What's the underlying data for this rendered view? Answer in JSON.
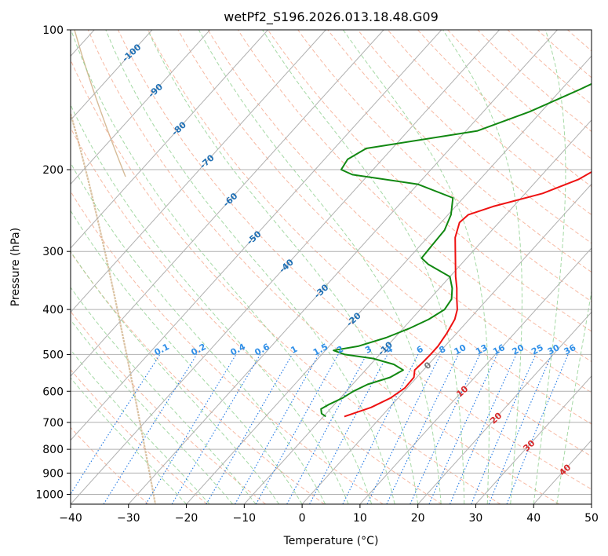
{
  "chart_data": {
    "type": "line",
    "subtype": "skew-t log-p diagram",
    "title": "wetPf2_S196.2026.013.18.48.G09",
    "xlabel": "Temperature (°C)",
    "ylabel": "Pressure (hPa)",
    "xlim": [
      -40,
      50
    ],
    "ylim": [
      1050,
      100
    ],
    "y_scale": "log",
    "grid": true,
    "x_ticks": [
      "−40",
      "−30",
      "−20",
      "−10",
      "0",
      "10",
      "20",
      "30",
      "40",
      "50"
    ],
    "y_ticks": [
      "100",
      "200",
      "300",
      "400",
      "500",
      "600",
      "700",
      "800",
      "900",
      "1000"
    ],
    "isotherm_labels": [
      "-100",
      "-90",
      "-80",
      "-70",
      "-60",
      "-50",
      "-40",
      "-30",
      "-20",
      "-10",
      "0",
      "10",
      "20",
      "30",
      "40"
    ],
    "mixing_ratio_labels": [
      "0.1",
      "0.2",
      "0.4",
      "0.6",
      "1",
      "1.5",
      "2",
      "3",
      "4",
      "6",
      "8",
      "10",
      "13",
      "16",
      "20",
      "25",
      "30",
      "36"
    ],
    "series": [
      {
        "color": "#ee1111",
        "points": [
          {
            "p": 680,
            "t": -6.4
          },
          {
            "p": 650,
            "t": -3.2
          },
          {
            "p": 620,
            "t": -1.3
          },
          {
            "p": 590,
            "t": -0.4
          },
          {
            "p": 560,
            "t": -0.5
          },
          {
            "p": 540,
            "t": -1.5
          },
          {
            "p": 520,
            "t": -1.3
          },
          {
            "p": 500,
            "t": -1.2
          },
          {
            "p": 480,
            "t": -1.2
          },
          {
            "p": 450,
            "t": -1.7
          },
          {
            "p": 420,
            "t": -2.5
          },
          {
            "p": 400,
            "t": -3.6
          },
          {
            "p": 380,
            "t": -5.3
          },
          {
            "p": 360,
            "t": -7.0
          },
          {
            "p": 340,
            "t": -9.0
          },
          {
            "p": 300,
            "t": -13.0
          },
          {
            "p": 280,
            "t": -15.2
          },
          {
            "p": 260,
            "t": -16.8
          },
          {
            "p": 250,
            "t": -16.5
          },
          {
            "p": 240,
            "t": -13.5
          },
          {
            "p": 225,
            "t": -7.0
          },
          {
            "p": 210,
            "t": -3.0
          },
          {
            "p": 190,
            "t": 0
          },
          {
            "p": 170,
            "t": 1.0
          },
          {
            "p": 150,
            "t": 1.5
          },
          {
            "p": 130,
            "t": 2.0
          },
          {
            "p": 115,
            "t": 2.2
          },
          {
            "p": 100,
            "t": 2.0
          }
        ]
      },
      {
        "color": "#118811",
        "points": [
          {
            "p": 680,
            "t": -9.6
          },
          {
            "p": 670,
            "t": -10.8
          },
          {
            "p": 655,
            "t": -11.6
          },
          {
            "p": 640,
            "t": -10.9
          },
          {
            "p": 620,
            "t": -9.6
          },
          {
            "p": 600,
            "t": -8.8
          },
          {
            "p": 580,
            "t": -7.4
          },
          {
            "p": 560,
            "t": -4.6
          },
          {
            "p": 540,
            "t": -3.5
          },
          {
            "p": 525,
            "t": -6.0
          },
          {
            "p": 510,
            "t": -10.5
          },
          {
            "p": 500,
            "t": -16.0
          },
          {
            "p": 490,
            "t": -18.6
          },
          {
            "p": 480,
            "t": -15.0
          },
          {
            "p": 460,
            "t": -11.5
          },
          {
            "p": 440,
            "t": -9.0
          },
          {
            "p": 420,
            "t": -7.0
          },
          {
            "p": 400,
            "t": -5.8
          },
          {
            "p": 380,
            "t": -6.2
          },
          {
            "p": 360,
            "t": -7.8
          },
          {
            "p": 340,
            "t": -10.0
          },
          {
            "p": 320,
            "t": -15.6
          },
          {
            "p": 310,
            "t": -17.8
          },
          {
            "p": 290,
            "t": -18.0
          },
          {
            "p": 270,
            "t": -18.2
          },
          {
            "p": 250,
            "t": -19.5
          },
          {
            "p": 230,
            "t": -21.8
          },
          {
            "p": 215,
            "t": -30.0
          },
          {
            "p": 205,
            "t": -42.8
          },
          {
            "p": 200,
            "t": -45.5
          },
          {
            "p": 190,
            "t": -46.0
          },
          {
            "p": 180,
            "t": -44.5
          },
          {
            "p": 165,
            "t": -28.0
          },
          {
            "p": 150,
            "t": -22.0
          },
          {
            "p": 135,
            "t": -17.0
          },
          {
            "p": 120,
            "t": -12.0
          },
          {
            "p": 110,
            "t": -8.0
          },
          {
            "p": 100,
            "t": -4.0
          }
        ]
      }
    ],
    "colors": {
      "temperature": "#ee1111",
      "dewpoint": "#118811",
      "grid": "#b0b0b0",
      "dry_adiabat": "#f4a184",
      "moist_adiabat": "#8fcf8f",
      "mixing_ratio": "#1f77e4",
      "isotherm_label": "#1f6fb4",
      "isotherm_label_warm": "#d62728",
      "isotherm_label_zero": "#777777",
      "mixing_label": "#2f8fe8",
      "pseudo_boundary": "#d2b48c"
    }
  }
}
